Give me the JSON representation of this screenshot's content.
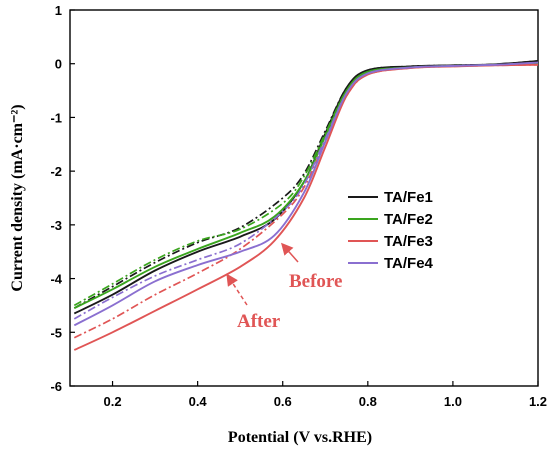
{
  "chart_data": {
    "type": "line",
    "xlabel": "Potential (V vs.RHE)",
    "ylabel": "Current density (mA·cm⁻²)",
    "xlim": [
      0.1,
      1.2
    ],
    "ylim": [
      -6,
      1
    ],
    "x_ticks": [
      "0.2",
      "0.4",
      "0.6",
      "0.8",
      "1.0",
      "1.2"
    ],
    "y_ticks": [
      "1",
      "0",
      "-1",
      "-2",
      "-3",
      "-4",
      "-5",
      "-6"
    ],
    "grid": false,
    "legend_position": "center-right",
    "series": [
      {
        "name": "TA/Fe1",
        "color": "#1a1a1a",
        "before": [
          [
            0.11,
            -4.65
          ],
          [
            0.2,
            -4.3
          ],
          [
            0.3,
            -3.85
          ],
          [
            0.4,
            -3.5
          ],
          [
            0.5,
            -3.22
          ],
          [
            0.58,
            -2.9
          ],
          [
            0.65,
            -2.2
          ],
          [
            0.7,
            -1.3
          ],
          [
            0.75,
            -0.45
          ],
          [
            0.8,
            -0.12
          ],
          [
            0.9,
            -0.05
          ],
          [
            1.0,
            -0.03
          ],
          [
            1.1,
            -0.01
          ],
          [
            1.2,
            0.05
          ]
        ],
        "after": [
          [
            0.11,
            -4.55
          ],
          [
            0.2,
            -4.15
          ],
          [
            0.3,
            -3.7
          ],
          [
            0.4,
            -3.33
          ],
          [
            0.5,
            -3.05
          ],
          [
            0.6,
            -2.5
          ],
          [
            0.65,
            -2.05
          ],
          [
            0.7,
            -1.25
          ],
          [
            0.75,
            -0.45
          ],
          [
            0.8,
            -0.12
          ],
          [
            0.9,
            -0.05
          ],
          [
            1.0,
            -0.03
          ],
          [
            1.1,
            -0.01
          ],
          [
            1.2,
            0.05
          ]
        ]
      },
      {
        "name": "TA/Fe2",
        "color": "#3aa51e",
        "before": [
          [
            0.11,
            -4.55
          ],
          [
            0.2,
            -4.2
          ],
          [
            0.3,
            -3.78
          ],
          [
            0.4,
            -3.45
          ],
          [
            0.5,
            -3.15
          ],
          [
            0.58,
            -2.85
          ],
          [
            0.65,
            -2.2
          ],
          [
            0.7,
            -1.35
          ],
          [
            0.75,
            -0.5
          ],
          [
            0.8,
            -0.15
          ],
          [
            0.9,
            -0.07
          ],
          [
            1.0,
            -0.04
          ],
          [
            1.1,
            -0.02
          ],
          [
            1.2,
            0.0
          ]
        ],
        "after": [
          [
            0.11,
            -4.5
          ],
          [
            0.2,
            -4.1
          ],
          [
            0.3,
            -3.65
          ],
          [
            0.4,
            -3.3
          ],
          [
            0.5,
            -3.08
          ],
          [
            0.6,
            -2.6
          ],
          [
            0.65,
            -2.1
          ],
          [
            0.7,
            -1.3
          ],
          [
            0.75,
            -0.5
          ],
          [
            0.8,
            -0.15
          ],
          [
            0.9,
            -0.07
          ],
          [
            1.0,
            -0.04
          ],
          [
            1.1,
            -0.02
          ],
          [
            1.2,
            0.0
          ]
        ]
      },
      {
        "name": "TA/Fe3",
        "color": "#e05555",
        "before": [
          [
            0.11,
            -5.33
          ],
          [
            0.2,
            -5.0
          ],
          [
            0.3,
            -4.6
          ],
          [
            0.4,
            -4.2
          ],
          [
            0.5,
            -3.78
          ],
          [
            0.58,
            -3.3
          ],
          [
            0.65,
            -2.5
          ],
          [
            0.7,
            -1.55
          ],
          [
            0.75,
            -0.6
          ],
          [
            0.8,
            -0.2
          ],
          [
            0.9,
            -0.08
          ],
          [
            1.0,
            -0.05
          ],
          [
            1.1,
            -0.03
          ],
          [
            1.2,
            -0.02
          ]
        ],
        "after": [
          [
            0.11,
            -5.1
          ],
          [
            0.2,
            -4.75
          ],
          [
            0.3,
            -4.3
          ],
          [
            0.4,
            -3.9
          ],
          [
            0.5,
            -3.45
          ],
          [
            0.6,
            -2.8
          ],
          [
            0.65,
            -2.3
          ],
          [
            0.7,
            -1.45
          ],
          [
            0.75,
            -0.6
          ],
          [
            0.8,
            -0.2
          ],
          [
            0.9,
            -0.08
          ],
          [
            1.0,
            -0.05
          ],
          [
            1.1,
            -0.03
          ],
          [
            1.2,
            -0.02
          ]
        ]
      },
      {
        "name": "TA/Fe4",
        "color": "#8a6fd0",
        "before": [
          [
            0.11,
            -4.87
          ],
          [
            0.2,
            -4.5
          ],
          [
            0.3,
            -4.05
          ],
          [
            0.4,
            -3.75
          ],
          [
            0.5,
            -3.5
          ],
          [
            0.58,
            -3.2
          ],
          [
            0.65,
            -2.4
          ],
          [
            0.7,
            -1.45
          ],
          [
            0.75,
            -0.55
          ],
          [
            0.8,
            -0.18
          ],
          [
            0.9,
            -0.07
          ],
          [
            1.0,
            -0.04
          ],
          [
            1.1,
            -0.02
          ],
          [
            1.2,
            0.02
          ]
        ],
        "after": [
          [
            0.11,
            -4.75
          ],
          [
            0.2,
            -4.35
          ],
          [
            0.3,
            -3.95
          ],
          [
            0.4,
            -3.65
          ],
          [
            0.5,
            -3.35
          ],
          [
            0.6,
            -2.75
          ],
          [
            0.65,
            -2.25
          ],
          [
            0.7,
            -1.4
          ],
          [
            0.75,
            -0.55
          ],
          [
            0.8,
            -0.18
          ],
          [
            0.9,
            -0.07
          ],
          [
            1.0,
            -0.04
          ],
          [
            1.1,
            -0.02
          ],
          [
            1.2,
            0.02
          ]
        ]
      }
    ],
    "annotations": [
      {
        "text": "Before",
        "color": "#e05555"
      },
      {
        "text": "After",
        "color": "#e05555"
      }
    ]
  }
}
